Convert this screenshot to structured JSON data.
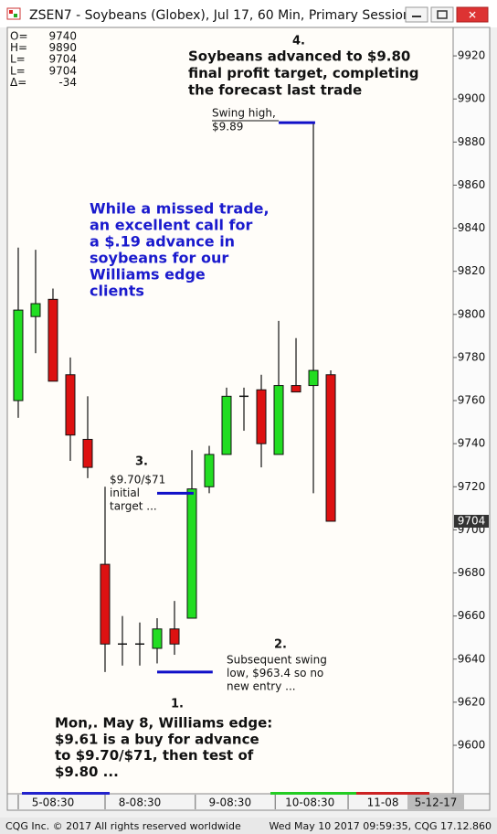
{
  "chart_data": {
    "type": "candlestick",
    "title": "ZSEN7 - Soybeans (Globex), Jul 17, 60 Min, Primary Session",
    "stats": [
      {
        "label": "O=",
        "value": 9740
      },
      {
        "label": "H=",
        "value": 9890
      },
      {
        "label": "L=",
        "value": 9704
      },
      {
        "label": "L=",
        "value": 9704
      },
      {
        "label": "Δ=",
        "value": -34
      }
    ],
    "series": [
      {
        "up_color": "#22dd22",
        "down_color": "#dd1111",
        "open": [
          9760,
          9799,
          9807,
          9772,
          9742,
          9684,
          9647,
          9647,
          9645,
          9654,
          9659,
          9720,
          9735,
          9762,
          9765,
          9735,
          9767,
          9767,
          9772
        ],
        "high": [
          9831,
          9830,
          9812,
          9780,
          9762,
          9720,
          9660,
          9657,
          9659,
          9667,
          9737,
          9739,
          9766,
          9766,
          9772,
          9797,
          9789,
          9889,
          9774
        ],
        "low": [
          9752,
          9782,
          9769,
          9732,
          9724,
          9634,
          9637,
          9637,
          9638,
          9642,
          9659,
          9717,
          9735,
          9746,
          9729,
          9735,
          9764,
          9717,
          9704
        ],
        "close": [
          9802,
          9805,
          9769,
          9744,
          9729,
          9647,
          9647,
          9647,
          9654,
          9647,
          9719,
          9735,
          9762,
          9762,
          9740,
          9767,
          9764,
          9774,
          9704
        ]
      }
    ],
    "xlim": [
      -0.63,
      25.05
    ],
    "xticks": [
      {
        "value": 2,
        "label": "5-08:30"
      },
      {
        "value": 7,
        "label": "8-08:30"
      },
      {
        "value": 12.2,
        "label": "9-08:30"
      },
      {
        "value": 16.8,
        "label": "10-08:30"
      },
      {
        "value": 21,
        "label": "11-08"
      }
    ],
    "ylim": [
      9577.5,
      9933.2
    ],
    "yticks": [
      9600,
      9620,
      9640,
      9660,
      9680,
      9700,
      9720,
      9740,
      9760,
      9780,
      9800,
      9820,
      9840,
      9860,
      9880,
      9900,
      9920
    ],
    "current_price": 9704,
    "date_label": "5-12-17",
    "level_lines": [
      {
        "value": 9717,
        "color": "#1010c8"
      },
      {
        "value": 9634,
        "color": "#1010c8"
      },
      {
        "value": 9889,
        "color": "#1010c8"
      }
    ],
    "annotations": [
      {
        "lines": [
          "4."
        ]
      },
      {
        "lines": [
          "Soybeans advanced to $9.80",
          "final profit target, completing",
          "the forecast last trade"
        ]
      },
      {
        "lines": [
          "Swing high,",
          "$9.89"
        ]
      },
      {
        "lines": [
          "While a missed trade,",
          "an excellent call for",
          "a $.19 advance in",
          "soybeans for our",
          "Williams edge",
          "clients"
        ],
        "color": "#1a1acd"
      },
      {
        "lines": [
          "3."
        ]
      },
      {
        "lines": [
          "$9.70/$71",
          "initial",
          "target ..."
        ]
      },
      {
        "lines": [
          "2."
        ]
      },
      {
        "lines": [
          "Subsequent swing",
          "low, $963.4 so no",
          "new entry ..."
        ]
      },
      {
        "lines": [
          "1."
        ]
      },
      {
        "lines": [
          "Mon,. May 8, Williams edge:",
          "$9.61 is a buy for advance",
          "to $9.70/$71, then test of",
          "$9.80 ..."
        ]
      }
    ],
    "footer_left": "CQG Inc. © 2017 All rights reserved worldwide",
    "footer_right": "Wed May 10 2017 09:59:35, CQG 17.12.860"
  }
}
